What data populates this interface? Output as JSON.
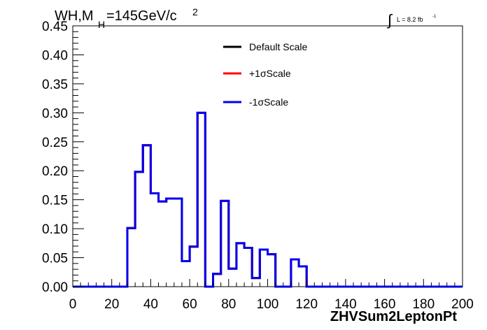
{
  "header": {
    "title_main": "WH,M",
    "title_sub": "H",
    "title_rest": "=145GeV/c",
    "title_sup": "2",
    "lumi_integral": "∫",
    "lumi_text": "L = 8.2 fb",
    "lumi_sup": "-1"
  },
  "chart_data": {
    "type": "histogram-step",
    "xlabel": "ZHVSum2LeptonPt",
    "ylabel": "",
    "xlim": [
      0,
      200
    ],
    "ylim": [
      0,
      0.45
    ],
    "x_ticks": [
      "0",
      "20",
      "40",
      "60",
      "80",
      "100",
      "120",
      "140",
      "160",
      "180",
      "200"
    ],
    "y_ticks": [
      "0.00",
      "0.05",
      "0.10",
      "0.15",
      "0.20",
      "0.25",
      "0.30",
      "0.35",
      "0.40",
      "0.45"
    ],
    "bin_width": 4,
    "bin_edges": [
      0,
      4,
      8,
      12,
      16,
      20,
      24,
      28,
      32,
      36,
      40,
      44,
      48,
      52,
      56,
      60,
      64,
      68,
      72,
      76,
      80,
      84,
      88,
      92,
      96,
      100,
      104,
      108,
      112,
      116,
      120,
      124,
      128,
      132,
      136,
      140,
      144,
      148,
      152,
      156,
      160,
      164,
      168,
      172,
      176,
      180,
      184,
      188,
      192,
      196,
      200
    ],
    "legend": {
      "position": "top-center",
      "entries": [
        {
          "label": "Default Scale",
          "color": "#000000"
        },
        {
          "label": "+1σScale",
          "color": "#ff0000"
        },
        {
          "label": "-1σScale",
          "color": "#0000ee"
        }
      ]
    },
    "series": [
      {
        "name": "Default Scale",
        "color": "#000000",
        "values": [
          0,
          0,
          0,
          0,
          0,
          0,
          0,
          0.101,
          0.198,
          0.244,
          0.161,
          0.147,
          0.152,
          0.152,
          0.044,
          0.069,
          0.3,
          0,
          0.022,
          0.148,
          0.031,
          0.075,
          0.067,
          0.015,
          0.064,
          0.056,
          0,
          0,
          0.047,
          0.035,
          0,
          0,
          0,
          0,
          0,
          0,
          0,
          0,
          0,
          0,
          0,
          0,
          0,
          0,
          0,
          0,
          0,
          0,
          0,
          0
        ]
      },
      {
        "name": "+1σScale",
        "color": "#ff0000",
        "values": [
          0,
          0,
          0,
          0,
          0,
          0,
          0,
          0.101,
          0.198,
          0.244,
          0.161,
          0.147,
          0.152,
          0.152,
          0.044,
          0.069,
          0.3,
          0,
          0.022,
          0.148,
          0.031,
          0.075,
          0.067,
          0.015,
          0.064,
          0.056,
          0,
          0,
          0.047,
          0.035,
          0,
          0,
          0,
          0,
          0,
          0,
          0,
          0,
          0,
          0,
          0,
          0,
          0,
          0,
          0,
          0,
          0,
          0,
          0,
          0
        ]
      },
      {
        "name": "-1σScale",
        "color": "#0000ee",
        "values": [
          0,
          0,
          0,
          0,
          0,
          0,
          0,
          0.101,
          0.198,
          0.244,
          0.161,
          0.147,
          0.152,
          0.152,
          0.044,
          0.069,
          0.3,
          0,
          0.022,
          0.148,
          0.031,
          0.075,
          0.067,
          0.015,
          0.064,
          0.056,
          0,
          0,
          0.047,
          0.035,
          0,
          0,
          0,
          0,
          0,
          0,
          0,
          0,
          0,
          0,
          0,
          0,
          0,
          0,
          0,
          0,
          0,
          0,
          0,
          0
        ]
      }
    ]
  }
}
